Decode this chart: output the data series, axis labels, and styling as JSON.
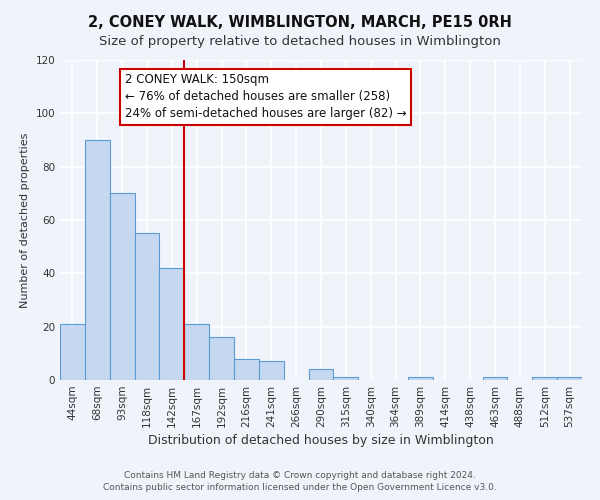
{
  "title": "2, CONEY WALK, WIMBLINGTON, MARCH, PE15 0RH",
  "subtitle": "Size of property relative to detached houses in Wimblington",
  "xlabel": "Distribution of detached houses by size in Wimblington",
  "ylabel": "Number of detached properties",
  "categories": [
    "44sqm",
    "68sqm",
    "93sqm",
    "118sqm",
    "142sqm",
    "167sqm",
    "192sqm",
    "216sqm",
    "241sqm",
    "266sqm",
    "290sqm",
    "315sqm",
    "340sqm",
    "364sqm",
    "389sqm",
    "414sqm",
    "438sqm",
    "463sqm",
    "488sqm",
    "512sqm",
    "537sqm"
  ],
  "values": [
    21,
    90,
    70,
    55,
    42,
    21,
    16,
    8,
    7,
    0,
    4,
    1,
    0,
    0,
    1,
    0,
    0,
    1,
    0,
    1,
    1
  ],
  "bar_color": "#c5d8ef",
  "bar_edge_color": "#5b9bd5",
  "property_line_x": 4.5,
  "property_line_color": "#cc0000",
  "annotation_title": "2 CONEY WALK: 150sqm",
  "annotation_line1": "← 76% of detached houses are smaller (258)",
  "annotation_line2": "24% of semi-detached houses are larger (82) →",
  "annotation_box_color": "#ffffff",
  "annotation_box_edge_color": "#cc0000",
  "ylim": [
    0,
    120
  ],
  "yticks": [
    0,
    20,
    40,
    60,
    80,
    100,
    120
  ],
  "footer_line1": "Contains HM Land Registry data © Crown copyright and database right 2024.",
  "footer_line2": "Contains public sector information licensed under the Open Government Licence v3.0.",
  "background_color": "#f0f4fa",
  "grid_color": "#ffffff",
  "title_fontsize": 10.5,
  "subtitle_fontsize": 9.5,
  "xlabel_fontsize": 9,
  "ylabel_fontsize": 8,
  "tick_fontsize": 7.5,
  "footer_fontsize": 6.5,
  "ann_fontsize": 8.5
}
